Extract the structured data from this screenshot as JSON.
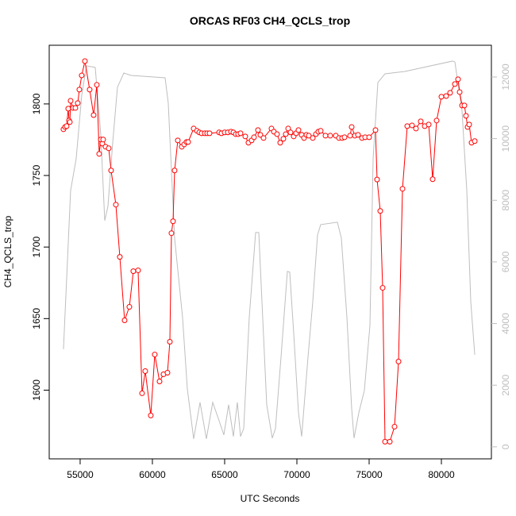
{
  "chart_data": {
    "type": "line",
    "title": "ORCAS RF03 CH4_QCLS_trop",
    "x_label": "UTC Seconds",
    "y_label": "CH4_QCLS_trop",
    "xlim": [
      52860,
      83460
    ],
    "xticks": [
      55000,
      60000,
      65000,
      70000,
      75000,
      80000
    ],
    "ylim": [
      1552,
      1841
    ],
    "yticks": [
      1600,
      1650,
      1700,
      1750,
      1800
    ],
    "y2lim": [
      -390,
      13030
    ],
    "y2ticks": [
      0,
      2000,
      4000,
      6000,
      8000,
      10000,
      12000
    ],
    "y2_color": "#bebebe",
    "series": [
      {
        "color": "#ff0000",
        "markers": true,
        "x": [
          53846,
          53956,
          54066,
          54176,
          54231,
          54286,
          54341,
          54505,
          54670,
          54835,
          54945,
          55110,
          55330,
          55659,
          55934,
          56154,
          56319,
          56429,
          56538,
          56593,
          56758,
          56978,
          57143,
          57473,
          57747,
          58077,
          58407,
          58681,
          59011,
          59286,
          59505,
          59890,
          60165,
          60495,
          60769,
          61044,
          61209,
          61319,
          61429,
          61538,
          61758,
          62033,
          62198,
          62363,
          62473,
          62857,
          63077,
          63242,
          63407,
          63626,
          63791,
          63956,
          64615,
          64780,
          65000,
          65220,
          65440,
          65604,
          65769,
          65934,
          66099,
          66429,
          66648,
          66868,
          67033,
          67308,
          67473,
          67692,
          68242,
          68407,
          68626,
          68846,
          69066,
          69231,
          69396,
          69560,
          69780,
          69945,
          70110,
          70330,
          70495,
          70659,
          70824,
          71099,
          71319,
          71484,
          71648,
          71978,
          72308,
          72692,
          72912,
          73132,
          73297,
          73681,
          73791,
          74011,
          74231,
          74505,
          74725,
          75000,
          75440,
          75549,
          75769,
          75934,
          76099,
          76429,
          76758,
          77033,
          77308,
          77637,
          77967,
          78242,
          78571,
          78846,
          79121,
          79396,
          79670,
          80000,
          80330,
          80604,
          80934,
          81154,
          81264,
          81429,
          81593,
          81703,
          81813,
          81923,
          82088,
          82308
        ],
        "values": [
          1782.3,
          1783.9,
          1784.5,
          1796.7,
          1788.4,
          1787.3,
          1802.2,
          1797.2,
          1797.2,
          1800.6,
          1810,
          1819.9,
          1829.9,
          1810,
          1792.2,
          1813.3,
          1765.1,
          1775.1,
          1772.3,
          1775.1,
          1770.1,
          1769,
          1753.5,
          1729.6,
          1693.1,
          1648.8,
          1658.2,
          1683.1,
          1683.7,
          1597.8,
          1613.3,
          1582.3,
          1624.9,
          1606.1,
          1611.1,
          1612.2,
          1633.8,
          1709.7,
          1718,
          1753.5,
          1774.5,
          1770.1,
          1771.7,
          1773.4,
          1773.4,
          1782.8,
          1781.2,
          1780.1,
          1779.5,
          1779.5,
          1779.5,
          1779.5,
          1780.1,
          1779.5,
          1780.1,
          1780.1,
          1780.6,
          1780.1,
          1778.9,
          1778.9,
          1779.5,
          1777.3,
          1772.9,
          1774.5,
          1776.7,
          1781.7,
          1778.4,
          1776.2,
          1782.8,
          1780.6,
          1778.9,
          1772.9,
          1775.6,
          1778.9,
          1782.8,
          1780.1,
          1777.3,
          1779.5,
          1781.7,
          1778.4,
          1776.2,
          1778.4,
          1777.8,
          1776.2,
          1778.9,
          1780.6,
          1781.2,
          1777.8,
          1777.8,
          1777.8,
          1776.2,
          1776.2,
          1776.7,
          1777.8,
          1783.9,
          1777.8,
          1778.4,
          1776.2,
          1776.7,
          1776.7,
          1781.7,
          1747.2,
          1725.2,
          1671.5,
          1564,
          1564,
          1574.5,
          1620,
          1740.7,
          1784.5,
          1785,
          1782.8,
          1787.8,
          1784.5,
          1785.6,
          1747.4,
          1788.4,
          1805,
          1805.5,
          1807.8,
          1813.9,
          1817.2,
          1808.3,
          1798.9,
          1798.9,
          1791.7,
          1783.9,
          1785.6,
          1772.9,
          1774
        ]
      },
      {
        "color": "#bebebe",
        "axis": "y2",
        "markers": false,
        "x": [
          53846,
          54341,
          54725,
          55110,
          55440,
          56044,
          56429,
          56703,
          56923,
          57253,
          57582,
          58022,
          58516,
          60879,
          61099,
          61538,
          62088,
          62418,
          62857,
          63297,
          63736,
          64176,
          64615,
          64945,
          65275,
          65604,
          65879,
          66099,
          66319,
          66703,
          67143,
          67363,
          67582,
          67912,
          68297,
          68516,
          68901,
          69341,
          69505,
          69780,
          70110,
          70330,
          70769,
          71099,
          71429,
          71648,
          72802,
          73077,
          73462,
          73791,
          73956,
          74286,
          74670,
          75055,
          75275,
          75604,
          76099,
          77473,
          80769,
          80934,
          81429,
          81758,
          82033,
          82308
        ],
        "values": [
          3168,
          8318,
          9349,
          11409,
          12362,
          12310,
          10121,
          7340,
          7803,
          9863,
          11666,
          12130,
          12052,
          11975,
          11151,
          6773,
          4198,
          1880,
          258,
          1442,
          258,
          1442,
          850,
          386,
          1365,
          335,
          1442,
          335,
          592,
          4198,
          6953,
          6953,
          4713,
          1365,
          283,
          592,
          2910,
          5691,
          5666,
          3683,
          1107,
          335,
          2910,
          4713,
          6876,
          7211,
          7288,
          6773,
          4198,
          1236,
          283,
          1107,
          1829,
          3940,
          9349,
          11821,
          12104,
          12181,
          12516,
          12490,
          10894,
          8318,
          4713,
          2987
        ]
      }
    ]
  }
}
